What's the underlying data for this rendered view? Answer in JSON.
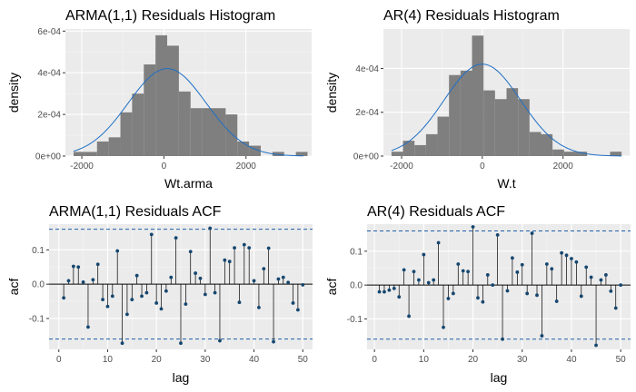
{
  "colors": {
    "panel_bg": "#ebebeb",
    "grid_major": "#ffffff",
    "grid_minor": "#f5f5f5",
    "bar_fill": "#7f7f7f",
    "density_line": "#1f6fc4",
    "point": "#15466f",
    "stem": "#000000",
    "conf_line": "#1f5fa8",
    "tick_text": "#4d4d4d"
  },
  "chart_data": [
    {
      "type": "bar",
      "subtype": "histogram",
      "title": "ARMA(1,1) Residuals Histogram",
      "xlabel": "Wt.arma",
      "ylabel": "density",
      "xlim": [
        -2400,
        3600
      ],
      "ylim": [
        0,
        0.00061
      ],
      "x_ticks": [
        -2000,
        0,
        2000
      ],
      "x_tick_labels": [
        "-2000",
        "0",
        "2000"
      ],
      "y_ticks": [
        0,
        0.0002,
        0.0004,
        0.0006
      ],
      "y_tick_labels": [
        "0e+00",
        "2e-04",
        "4e-04",
        "6e-04"
      ],
      "grid": true,
      "bins": [
        {
          "x0": -2200,
          "x1": -1915,
          "value": 2e-05
        },
        {
          "x0": -1915,
          "x1": -1630,
          "value": 2e-05
        },
        {
          "x0": -1630,
          "x1": -1345,
          "value": 7e-05
        },
        {
          "x0": -1345,
          "x1": -1060,
          "value": 9e-05
        },
        {
          "x0": -1060,
          "x1": -775,
          "value": 0.00021
        },
        {
          "x0": -775,
          "x1": -490,
          "value": 0.0003
        },
        {
          "x0": -490,
          "x1": -205,
          "value": 0.00044
        },
        {
          "x0": -205,
          "x1": 80,
          "value": 0.00058
        },
        {
          "x0": 80,
          "x1": 365,
          "value": 0.00053
        },
        {
          "x0": 365,
          "x1": 650,
          "value": 0.00031
        },
        {
          "x0": 650,
          "x1": 935,
          "value": 0.00023
        },
        {
          "x0": 935,
          "x1": 1220,
          "value": 0.00023
        },
        {
          "x0": 1220,
          "x1": 1505,
          "value": 0.00023
        },
        {
          "x0": 1505,
          "x1": 1790,
          "value": 0.0002
        },
        {
          "x0": 1790,
          "x1": 2075,
          "value": 7e-05
        },
        {
          "x0": 2075,
          "x1": 2360,
          "value": 5e-05
        },
        {
          "x0": 2360,
          "x1": 2645,
          "value": 0
        },
        {
          "x0": 2645,
          "x1": 2930,
          "value": 2e-05
        },
        {
          "x0": 2930,
          "x1": 3215,
          "value": 0
        },
        {
          "x0": 3215,
          "x1": 3500,
          "value": 2e-05
        }
      ],
      "density_curve": {
        "mean": 80,
        "sd": 950,
        "x_range": [
          -2200,
          3400
        ]
      }
    },
    {
      "type": "bar",
      "subtype": "histogram",
      "title": "AR(4) Residuals Histogram",
      "xlabel": "W.t",
      "ylabel": "density",
      "xlim": [
        -2450,
        3650
      ],
      "ylim": [
        0,
        0.00058
      ],
      "x_ticks": [
        -2000,
        0,
        2000
      ],
      "x_tick_labels": [
        "-2000",
        "0",
        "2000"
      ],
      "y_ticks": [
        0,
        0.0002,
        0.0004
      ],
      "y_tick_labels": [
        "0e+00",
        "2e-04",
        "4e-04"
      ],
      "grid": true,
      "bins": [
        {
          "x0": -2250,
          "x1": -1965,
          "value": 2e-05
        },
        {
          "x0": -1965,
          "x1": -1680,
          "value": 7e-05
        },
        {
          "x0": -1680,
          "x1": -1395,
          "value": 5e-05
        },
        {
          "x0": -1395,
          "x1": -1110,
          "value": 0.0001
        },
        {
          "x0": -1110,
          "x1": -825,
          "value": 0.00018
        },
        {
          "x0": -825,
          "x1": -540,
          "value": 0.00037
        },
        {
          "x0": -540,
          "x1": -255,
          "value": 0.00039
        },
        {
          "x0": -255,
          "x1": 30,
          "value": 0.00055
        },
        {
          "x0": 30,
          "x1": 315,
          "value": 0.0003
        },
        {
          "x0": 315,
          "x1": 600,
          "value": 0.00026
        },
        {
          "x0": 600,
          "x1": 885,
          "value": 0.00031
        },
        {
          "x0": 885,
          "x1": 1170,
          "value": 0.00026
        },
        {
          "x0": 1170,
          "x1": 1455,
          "value": 0.00011
        },
        {
          "x0": 1455,
          "x1": 1740,
          "value": 0.0001
        },
        {
          "x0": 1740,
          "x1": 2025,
          "value": 3e-05
        },
        {
          "x0": 2025,
          "x1": 2310,
          "value": 2e-05
        },
        {
          "x0": 2310,
          "x1": 2595,
          "value": 2e-05
        },
        {
          "x0": 2595,
          "x1": 2880,
          "value": 0
        },
        {
          "x0": 2880,
          "x1": 3165,
          "value": 0
        },
        {
          "x0": 3165,
          "x1": 3450,
          "value": 2e-05
        }
      ],
      "density_curve": {
        "mean": 0,
        "sd": 950,
        "x_range": [
          -2250,
          3450
        ]
      }
    },
    {
      "type": "scatter",
      "subtype": "acf",
      "title": "ARMA(1,1) Residuals ACF",
      "xlabel": "lag",
      "ylabel": "acf",
      "xlim": [
        -2,
        52
      ],
      "ylim": [
        -0.19,
        0.175
      ],
      "x_ticks": [
        0,
        10,
        20,
        30,
        40,
        50
      ],
      "x_tick_labels": [
        "0",
        "10",
        "20",
        "30",
        "40",
        "50"
      ],
      "y_ticks": [
        -0.1,
        0,
        0.1
      ],
      "y_tick_labels": [
        "-0.1",
        "0.0",
        "0.1"
      ],
      "grid": true,
      "confidence_band": 0.16,
      "lags": [
        1,
        2,
        3,
        4,
        5,
        6,
        7,
        8,
        9,
        10,
        11,
        12,
        13,
        14,
        15,
        16,
        17,
        18,
        19,
        20,
        21,
        22,
        23,
        24,
        25,
        26,
        27,
        28,
        29,
        30,
        31,
        32,
        33,
        34,
        35,
        36,
        37,
        38,
        39,
        40,
        41,
        42,
        43,
        44,
        45,
        46,
        47,
        48,
        49,
        50
      ],
      "values": [
        -0.04,
        0.01,
        0.052,
        0.05,
        0.006,
        -0.125,
        0.013,
        0.058,
        -0.045,
        -0.065,
        -0.035,
        0.097,
        -0.172,
        -0.088,
        -0.045,
        0.025,
        -0.035,
        -0.025,
        0.145,
        -0.055,
        -0.072,
        -0.02,
        0.02,
        0.135,
        -0.172,
        -0.058,
        0.095,
        0.032,
        0.017,
        -0.03,
        0.163,
        -0.025,
        -0.165,
        0.07,
        0.066,
        0.106,
        -0.053,
        0.115,
        0.106,
        0.01,
        -0.068,
        0.045,
        0.105,
        -0.168,
        0.015,
        0.02,
        0.005,
        -0.055,
        -0.075,
        -0.002
      ]
    },
    {
      "type": "scatter",
      "subtype": "acf",
      "title": "AR(4) Residuals ACF",
      "xlabel": "lag",
      "ylabel": "acf",
      "xlim": [
        -1.5,
        52
      ],
      "ylim": [
        -0.19,
        0.18
      ],
      "x_ticks": [
        0,
        10,
        20,
        30,
        40,
        50
      ],
      "x_tick_labels": [
        "0",
        "10",
        "20",
        "30",
        "40",
        "50"
      ],
      "y_ticks": [
        -0.1,
        0,
        0.1
      ],
      "y_tick_labels": [
        "-0.1",
        "0.0",
        "0.1"
      ],
      "grid": true,
      "confidence_band": 0.16,
      "lags": [
        1,
        2,
        3,
        4,
        5,
        6,
        7,
        8,
        9,
        10,
        11,
        12,
        13,
        14,
        15,
        16,
        17,
        18,
        19,
        20,
        21,
        22,
        23,
        24,
        25,
        26,
        27,
        28,
        29,
        30,
        31,
        32,
        33,
        34,
        35,
        36,
        37,
        38,
        39,
        40,
        41,
        42,
        43,
        44,
        45,
        46,
        47,
        48,
        49,
        50
      ],
      "values": [
        -0.02,
        -0.02,
        -0.015,
        -0.01,
        -0.035,
        0.045,
        -0.092,
        0.04,
        0.015,
        0.09,
        0.007,
        0.015,
        0.125,
        -0.125,
        -0.04,
        -0.025,
        0.062,
        0.042,
        0.04,
        0.172,
        -0.038,
        -0.05,
        0.03,
        0.0,
        0.148,
        -0.16,
        -0.017,
        0.08,
        0.038,
        0.06,
        -0.025,
        0.153,
        -0.03,
        -0.15,
        0.062,
        0.048,
        -0.048,
        0.095,
        0.088,
        0.078,
        0.068,
        -0.033,
        0.053,
        0.023,
        -0.178,
        0.015,
        0.03,
        -0.018,
        -0.068,
        0.0
      ]
    }
  ]
}
